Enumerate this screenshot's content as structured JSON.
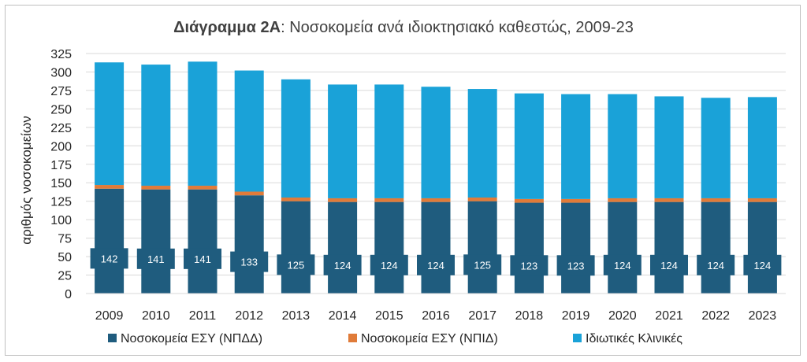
{
  "chart_data": {
    "type": "bar",
    "stacked": true,
    "title_bold": "Διάγραμμα 2Α",
    "title_rest": ": Νοσοκομεία ανά ιδιοκτησιακό καθεστώς, 2009-23",
    "ylabel": "αριθμός νοσοκομείων",
    "xlabel": "",
    "ylim": [
      0,
      325
    ],
    "yticks": [
      0,
      25,
      50,
      75,
      100,
      125,
      150,
      175,
      200,
      225,
      250,
      275,
      300,
      325
    ],
    "grid": true,
    "legend_position": "bottom",
    "categories": [
      "2009",
      "2010",
      "2011",
      "2012",
      "2013",
      "2014",
      "2015",
      "2016",
      "2017",
      "2018",
      "2019",
      "2020",
      "2021",
      "2022",
      "2023"
    ],
    "series": [
      {
        "name": "Νοσοκομεία ΕΣΥ (ΝΠΔΔ)",
        "color": "#1f5c7e",
        "values": [
          142,
          141,
          141,
          133,
          125,
          124,
          124,
          124,
          125,
          123,
          123,
          124,
          124,
          124,
          124
        ],
        "labeled": true
      },
      {
        "name": "Νοσοκομεία ΕΣΥ (ΝΠΙΔ)",
        "color": "#e07b39",
        "values": [
          5,
          5,
          5,
          5,
          5,
          5,
          5,
          5,
          5,
          5,
          5,
          5,
          5,
          5,
          5
        ],
        "labeled": false
      },
      {
        "name": "Ιδιωτικές Κλινικές",
        "color": "#1aa2d8",
        "values": [
          166,
          164,
          168,
          164,
          160,
          154,
          154,
          151,
          147,
          143,
          142,
          141,
          138,
          136,
          137
        ],
        "labeled": false
      }
    ],
    "data_label_box_color": "#1f5c7e"
  }
}
